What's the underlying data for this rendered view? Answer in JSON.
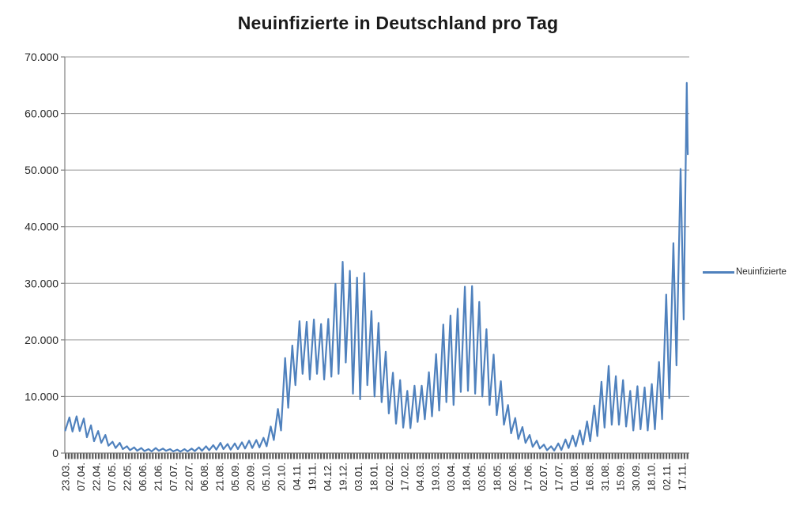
{
  "title": "Neuinfizierte in Deutschland pro Tag",
  "legend": {
    "position": "right",
    "items": [
      {
        "label": "Neuinfizierte",
        "color": "#4F81BD"
      }
    ]
  },
  "colors": {
    "series_blue": "#4F81BD",
    "gridline": "#999999",
    "axis": "#808080",
    "tick_comb": "#595959",
    "label_text": "#262626",
    "background": "#FFFFFF"
  },
  "chart_data": {
    "type": "line",
    "title": "Neuinfizierte in Deutschland pro Tag",
    "xlabel": "",
    "ylabel": "",
    "grid": true,
    "legend_position": "right",
    "ylim": [
      0,
      70000
    ],
    "y_ticks": [
      {
        "label": "70.000",
        "value": 70000
      },
      {
        "label": "60.000",
        "value": 60000
      },
      {
        "label": "50.000",
        "value": 50000
      },
      {
        "label": "40.000",
        "value": 40000
      },
      {
        "label": "30.000",
        "value": 30000
      },
      {
        "label": "20.000",
        "value": 20000
      },
      {
        "label": "10.000",
        "value": 10000
      },
      {
        "label": "0",
        "value": 0
      }
    ],
    "x_tick_labels": [
      "23.03.",
      "07.04.",
      "22.04.",
      "07.05.",
      "22.05.",
      "06.06.",
      "21.06.",
      "07.07.",
      "22.07.",
      "06.08.",
      "21.08.",
      "05.09.",
      "20.09.",
      "05.10.",
      "20.10.",
      "04.11.",
      "19.11.",
      "04.12.",
      "19.12.",
      "03.01.",
      "18.01.",
      "02.02.",
      "17.02.",
      "04.03.",
      "19.03.",
      "03.04.",
      "18.04.",
      "03.05.",
      "18.05.",
      "02.06.",
      "17.06.",
      "02.07.",
      "17.07.",
      "01.08.",
      "16.08.",
      "31.08.",
      "15.09.",
      "30.09.",
      "18.10.",
      "02.11.",
      "17.11."
    ],
    "x_tick_interval": 15,
    "x_domain": 608,
    "series": [
      {
        "name": "Neuinfizierte",
        "color": "#4F81BD",
        "points": [
          [
            0,
            4000
          ],
          [
            4,
            6300
          ],
          [
            7,
            3800
          ],
          [
            11,
            6500
          ],
          [
            14,
            3900
          ],
          [
            18,
            6100
          ],
          [
            21,
            2800
          ],
          [
            25,
            4900
          ],
          [
            28,
            2100
          ],
          [
            32,
            3900
          ],
          [
            35,
            1800
          ],
          [
            39,
            3200
          ],
          [
            42,
            1300
          ],
          [
            46,
            2000
          ],
          [
            49,
            900
          ],
          [
            53,
            1800
          ],
          [
            56,
            700
          ],
          [
            60,
            1200
          ],
          [
            63,
            500
          ],
          [
            67,
            1000
          ],
          [
            70,
            400
          ],
          [
            74,
            900
          ],
          [
            77,
            350
          ],
          [
            81,
            700
          ],
          [
            84,
            300
          ],
          [
            88,
            900
          ],
          [
            91,
            400
          ],
          [
            95,
            800
          ],
          [
            98,
            400
          ],
          [
            102,
            700
          ],
          [
            105,
            300
          ],
          [
            109,
            600
          ],
          [
            112,
            250
          ],
          [
            116,
            700
          ],
          [
            119,
            300
          ],
          [
            123,
            800
          ],
          [
            126,
            350
          ],
          [
            130,
            1000
          ],
          [
            133,
            400
          ],
          [
            137,
            1200
          ],
          [
            140,
            500
          ],
          [
            144,
            1400
          ],
          [
            147,
            600
          ],
          [
            151,
            1800
          ],
          [
            154,
            700
          ],
          [
            158,
            1600
          ],
          [
            161,
            600
          ],
          [
            165,
            1700
          ],
          [
            168,
            700
          ],
          [
            172,
            1900
          ],
          [
            175,
            800
          ],
          [
            179,
            2200
          ],
          [
            182,
            900
          ],
          [
            186,
            2300
          ],
          [
            189,
            1000
          ],
          [
            193,
            2700
          ],
          [
            196,
            1200
          ],
          [
            200,
            4700
          ],
          [
            203,
            2300
          ],
          [
            207,
            7800
          ],
          [
            210,
            4000
          ],
          [
            214,
            16800
          ],
          [
            217,
            8000
          ],
          [
            221,
            19000
          ],
          [
            224,
            12000
          ],
          [
            228,
            23300
          ],
          [
            231,
            14000
          ],
          [
            235,
            23200
          ],
          [
            238,
            13000
          ],
          [
            242,
            23600
          ],
          [
            245,
            14000
          ],
          [
            249,
            22800
          ],
          [
            252,
            13000
          ],
          [
            256,
            23700
          ],
          [
            259,
            13500
          ],
          [
            263,
            29900
          ],
          [
            266,
            14000
          ],
          [
            270,
            33800
          ],
          [
            273,
            16000
          ],
          [
            277,
            32200
          ],
          [
            280,
            10500
          ],
          [
            284,
            31000
          ],
          [
            287,
            9500
          ],
          [
            291,
            31800
          ],
          [
            294,
            12000
          ],
          [
            298,
            25100
          ],
          [
            301,
            10000
          ],
          [
            305,
            23000
          ],
          [
            308,
            9000
          ],
          [
            312,
            17900
          ],
          [
            315,
            7000
          ],
          [
            319,
            14200
          ],
          [
            322,
            5200
          ],
          [
            326,
            12900
          ],
          [
            329,
            4500
          ],
          [
            333,
            11000
          ],
          [
            336,
            4400
          ],
          [
            340,
            11900
          ],
          [
            343,
            5500
          ],
          [
            347,
            11900
          ],
          [
            350,
            6000
          ],
          [
            354,
            14300
          ],
          [
            357,
            6500
          ],
          [
            361,
            17500
          ],
          [
            364,
            7500
          ],
          [
            368,
            22700
          ],
          [
            371,
            9000
          ],
          [
            375,
            24300
          ],
          [
            378,
            8500
          ],
          [
            382,
            25500
          ],
          [
            385,
            10800
          ],
          [
            389,
            29400
          ],
          [
            392,
            11000
          ],
          [
            396,
            29500
          ],
          [
            399,
            10500
          ],
          [
            403,
            26700
          ],
          [
            406,
            10000
          ],
          [
            410,
            21900
          ],
          [
            413,
            8500
          ],
          [
            417,
            17400
          ],
          [
            420,
            6700
          ],
          [
            424,
            12700
          ],
          [
            427,
            5000
          ],
          [
            431,
            8500
          ],
          [
            434,
            3500
          ],
          [
            438,
            6200
          ],
          [
            441,
            2500
          ],
          [
            445,
            4600
          ],
          [
            448,
            1800
          ],
          [
            452,
            3200
          ],
          [
            455,
            1100
          ],
          [
            459,
            2200
          ],
          [
            462,
            800
          ],
          [
            466,
            1500
          ],
          [
            469,
            500
          ],
          [
            473,
            1200
          ],
          [
            476,
            450
          ],
          [
            480,
            1700
          ],
          [
            483,
            550
          ],
          [
            487,
            2400
          ],
          [
            490,
            900
          ],
          [
            494,
            3100
          ],
          [
            497,
            1200
          ],
          [
            501,
            4000
          ],
          [
            504,
            1500
          ],
          [
            508,
            5600
          ],
          [
            511,
            2100
          ],
          [
            515,
            8400
          ],
          [
            518,
            3000
          ],
          [
            522,
            12600
          ],
          [
            525,
            4500
          ],
          [
            529,
            15400
          ],
          [
            532,
            5000
          ],
          [
            536,
            13600
          ],
          [
            539,
            5000
          ],
          [
            543,
            12900
          ],
          [
            546,
            4700
          ],
          [
            550,
            11000
          ],
          [
            553,
            4000
          ],
          [
            557,
            11800
          ],
          [
            560,
            4200
          ],
          [
            564,
            11600
          ],
          [
            567,
            4000
          ],
          [
            571,
            12200
          ],
          [
            574,
            4200
          ],
          [
            578,
            16100
          ],
          [
            581,
            6000
          ],
          [
            585,
            28000
          ],
          [
            588,
            9700
          ],
          [
            592,
            37100
          ],
          [
            595,
            15500
          ],
          [
            599,
            50200
          ],
          [
            602,
            23600
          ],
          [
            605,
            65400
          ],
          [
            606,
            52800
          ]
        ]
      }
    ]
  }
}
